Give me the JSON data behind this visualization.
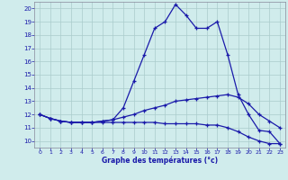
{
  "hours": [
    0,
    1,
    2,
    3,
    4,
    5,
    6,
    7,
    8,
    9,
    10,
    11,
    12,
    13,
    14,
    15,
    16,
    17,
    18,
    19,
    20,
    21,
    22,
    23
  ],
  "temp_max": [
    12.0,
    11.7,
    11.5,
    11.4,
    11.4,
    11.4,
    11.5,
    11.6,
    12.5,
    14.5,
    16.5,
    18.5,
    19.0,
    20.3,
    19.5,
    18.5,
    18.5,
    19.0,
    16.5,
    13.5,
    12.0,
    10.8,
    10.7,
    9.8
  ],
  "temp_avg": [
    12.0,
    11.7,
    11.5,
    11.4,
    11.4,
    11.4,
    11.5,
    11.6,
    11.8,
    12.0,
    12.3,
    12.5,
    12.7,
    13.0,
    13.1,
    13.2,
    13.3,
    13.4,
    13.5,
    13.3,
    12.8,
    12.0,
    11.5,
    11.0
  ],
  "temp_min": [
    12.0,
    11.7,
    11.5,
    11.4,
    11.4,
    11.4,
    11.4,
    11.4,
    11.4,
    11.4,
    11.4,
    11.4,
    11.3,
    11.3,
    11.3,
    11.3,
    11.2,
    11.2,
    11.0,
    10.7,
    10.3,
    10.0,
    9.8,
    9.8
  ],
  "line_color": "#1a1aaa",
  "bg_color": "#d0ecec",
  "grid_color": "#aacccc",
  "xlabel": "Graphe des températures (°c)",
  "ylim": [
    9.5,
    20.5
  ],
  "xlim": [
    -0.5,
    23.5
  ],
  "yticks": [
    10,
    11,
    12,
    13,
    14,
    15,
    16,
    17,
    18,
    19,
    20
  ],
  "xticks": [
    0,
    1,
    2,
    3,
    4,
    5,
    6,
    7,
    8,
    9,
    10,
    11,
    12,
    13,
    14,
    15,
    16,
    17,
    18,
    19,
    20,
    21,
    22,
    23
  ]
}
